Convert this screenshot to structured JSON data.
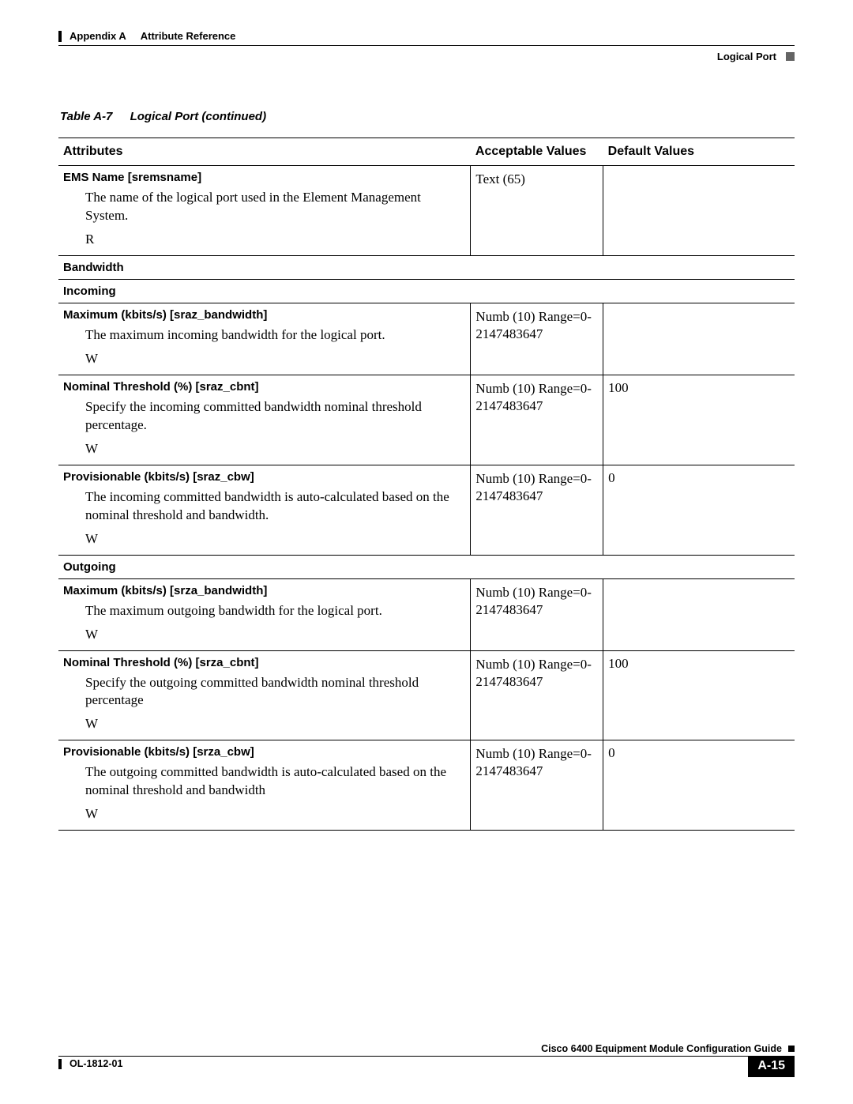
{
  "header": {
    "appendix": "Appendix A",
    "title": "Attribute Reference",
    "section": "Logical Port"
  },
  "table": {
    "caption_num": "Table A-7",
    "caption_title": "Logical Port  (continued)",
    "columns": {
      "attributes": "Attributes",
      "acceptable": "Acceptable Values",
      "default": "Default Values"
    },
    "rows": [
      {
        "kind": "attr",
        "name": "EMS Name [sremsname]",
        "desc": "The name of the logical port used in the Element Management System.",
        "flag": "R",
        "acceptable": "Text (65)",
        "default": ""
      },
      {
        "kind": "section",
        "label": "Bandwidth"
      },
      {
        "kind": "section",
        "label": "Incoming"
      },
      {
        "kind": "attr",
        "name": "Maximum (kbits/s) [sraz_bandwidth]",
        "desc": "The maximum incoming bandwidth for the logical port.",
        "flag": "W",
        "acceptable": "Numb (10) Range=0-2147483647",
        "default": ""
      },
      {
        "kind": "attr",
        "name": "Nominal Threshold (%) [sraz_cbnt]",
        "desc": "Specify the incoming committed bandwidth nominal threshold percentage.",
        "flag": "W",
        "acceptable": "Numb (10) Range=0-2147483647",
        "default": "100"
      },
      {
        "kind": "attr",
        "name": "Provisionable (kbits/s) [sraz_cbw]",
        "desc": "The incoming committed bandwidth is auto-calculated based on the nominal threshold and bandwidth.",
        "flag": "W",
        "acceptable": "Numb (10) Range=0-2147483647",
        "default": "0"
      },
      {
        "kind": "section",
        "label": "Outgoing"
      },
      {
        "kind": "attr",
        "name": "Maximum (kbits/s) [srza_bandwidth]",
        "desc": "The maximum outgoing bandwidth for the logical port.",
        "flag": "W",
        "acceptable": "Numb (10) Range=0-2147483647",
        "default": ""
      },
      {
        "kind": "attr",
        "name": "Nominal Threshold (%) [srza_cbnt]",
        "desc": "Specify the outgoing committed bandwidth nominal threshold percentage",
        "flag": "W",
        "acceptable": "Numb (10) Range=0-2147483647",
        "default": "100"
      },
      {
        "kind": "attr",
        "name": "Provisionable (kbits/s) [srza_cbw]",
        "desc": "The outgoing committed bandwidth is auto-calculated based on the nominal threshold and bandwidth",
        "flag": "W",
        "acceptable": "Numb (10) Range=0-2147483647",
        "default": "0"
      }
    ]
  },
  "footer": {
    "guide": "Cisco 6400 Equipment Module Configuration Guide",
    "docnum": "OL-1812-01",
    "page": "A-15"
  }
}
